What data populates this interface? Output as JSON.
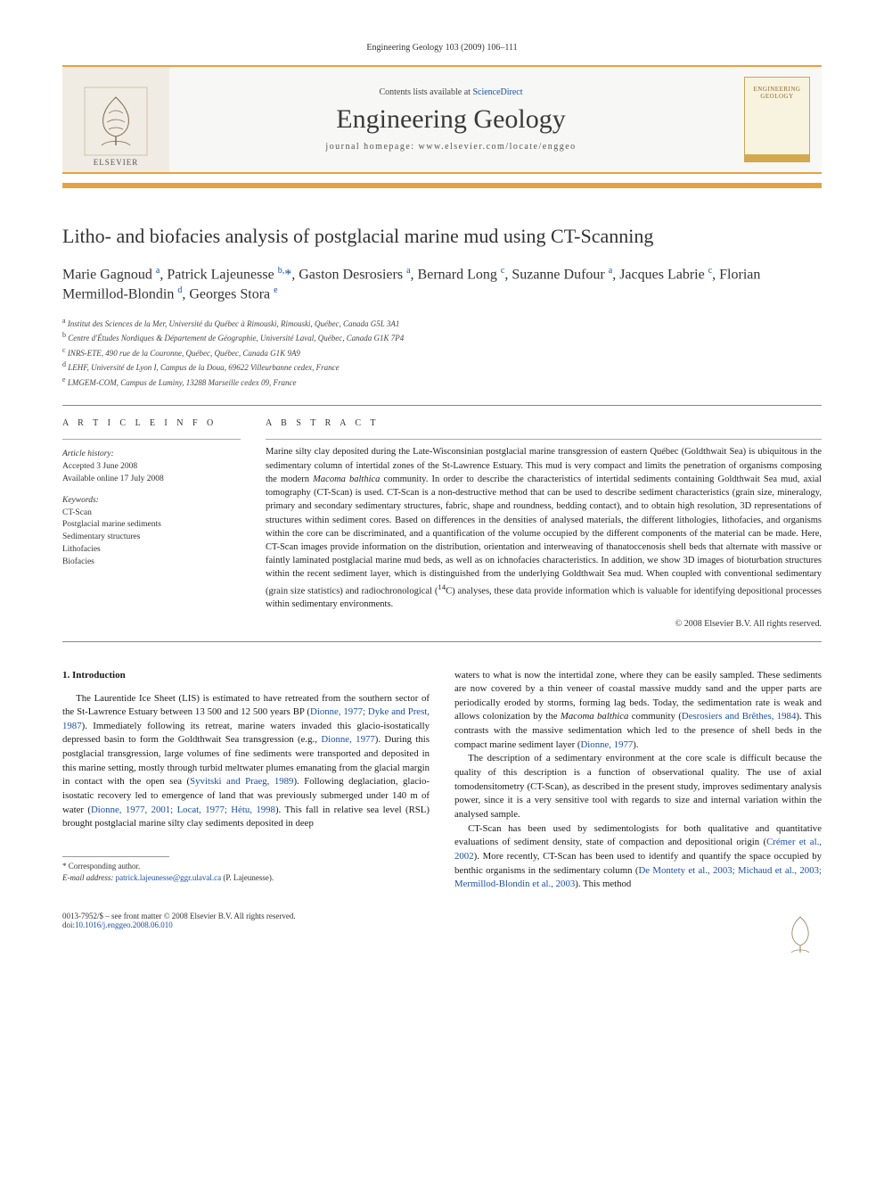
{
  "journal_header": "Engineering Geology 103 (2009) 106–111",
  "banner": {
    "contents_prefix": "Contents lists available at ",
    "contents_link": "ScienceDirect",
    "journal_title": "Engineering Geology",
    "homepage_prefix": "journal homepage: ",
    "homepage_url": "www.elsevier.com/locate/enggeo",
    "elsevier_wordmark": "ELSEVIER",
    "cover_label_1": "ENGINEERING",
    "cover_label_2": "GEOLOGY"
  },
  "article": {
    "title": "Litho- and biofacies analysis of postglacial marine mud using CT-Scanning",
    "authors_html": "Marie Gagnoud <sup>a</sup>, Patrick Lajeunesse <sup>b,</sup><span class='ast'>*</span>, Gaston Desrosiers <sup>a</sup>, Bernard Long <sup>c</sup>, Suzanne Dufour <sup>a</sup>, Jacques Labrie <sup>c</sup>, Florian Mermillod-Blondin <sup>d</sup>, Georges Stora <sup>e</sup>",
    "affiliations": [
      "a Institut des Sciences de la Mer, Université du Québec à Rimouski, Rimouski, Québec, Canada G5L 3A1",
      "b Centre d'Études Nordiques & Département de Géographie, Université Laval, Québec, Canada G1K 7P4",
      "c INRS-ETE, 490 rue de la Couronne, Québec, Québec, Canada G1K 9A9",
      "d LEHF, Université de Lyon I, Campus de la Doua, 69622 Villeurbanne cedex, France",
      "e LMGEM-COM, Campus de Luminy, 13288 Marseille cedex 09, France"
    ]
  },
  "info": {
    "section_label": "A R T I C L E   I N F O",
    "history_title": "Article history:",
    "history_1": "Accepted 3 June 2008",
    "history_2": "Available online 17 July 2008",
    "keywords_title": "Keywords:",
    "keywords": [
      "CT-Scan",
      "Postglacial marine sediments",
      "Sedimentary structures",
      "Lithofacies",
      "Biofacies"
    ]
  },
  "abstract": {
    "section_label": "A B S T R A C T",
    "text_html": "Marine silty clay deposited during the Late-Wisconsinian postglacial marine transgression of eastern Québec (Goldthwait Sea) is ubiquitous in the sedimentary column of intertidal zones of the St-Lawrence Estuary. This mud is very compact and limits the penetration of organisms composing the modern <span class='ital'>Macoma balthica</span> community. In order to describe the characteristics of intertidal sediments containing Goldthwait Sea mud, axial tomography (CT-Scan) is used. CT-Scan is a non-destructive method that can be used to describe sediment characteristics (grain size, mineralogy, primary and secondary sedimentary structures, fabric, shape and roundness, bedding contact), and to obtain high resolution, 3D representations of structures within sediment cores. Based on differences in the densities of analysed materials, the different lithologies, lithofacies, and organisms within the core can be discriminated, and a quantification of the volume occupied by the different components of the material can be made. Here, CT-Scan images provide information on the distribution, orientation and interweaving of thanatoccenosis shell beds that alternate with massive or faintly laminated postglacial marine mud beds, as well as on ichnofacies characteristics. In addition, we show 3D images of bioturbation structures within the recent sediment layer, which is distinguished from the underlying Goldthwait Sea mud. When coupled with conventional sedimentary (grain size statistics) and radiochronological (<sup>14</sup>C) analyses, these data provide information which is valuable for identifying depositional processes within sedimentary environments.",
    "copyright": "© 2008 Elsevier B.V. All rights reserved."
  },
  "body": {
    "heading": "1. Introduction",
    "left_paragraphs": [
      "The Laurentide Ice Sheet (LIS) is estimated to have retreated from the southern sector of the St-Lawrence Estuary between 13 500 and 12 500 years BP (<a href='#'>Dionne, 1977; Dyke and Prest, 1987</a>). Immediately following its retreat, marine waters invaded this glacio-isostatically depressed basin to form the Goldthwait Sea transgression (e.g., <a href='#'>Dionne, 1977</a>). During this postglacial transgression, large volumes of fine sediments were transported and deposited in this marine setting, mostly through turbid meltwater plumes emanating from the glacial margin in contact with the open sea (<a href='#'>Syvitski and Praeg, 1989</a>). Following deglaciation, glacio-isostatic recovery led to emergence of land that was previously submerged under 140 m of water (<a href='#'>Dionne, 1977, 2001; Locat, 1977; Hétu, 1998</a>). This fall in relative sea level (RSL) brought postglacial marine silty clay sediments deposited in deep"
    ],
    "right_paragraphs": [
      "waters to what is now the intertidal zone, where they can be easily sampled. These sediments are now covered by a thin veneer of coastal massive muddy sand and the upper parts are periodically eroded by storms, forming lag beds. Today, the sedimentation rate is weak and allows colonization by the <span style='font-style:italic'>Macoma balthica</span> community (<a href='#'>Desrosiers and Brêthes, 1984</a>). This contrasts with the massive sedimentation which led to the presence of shell beds in the compact marine sediment layer (<a href='#'>Dionne, 1977</a>).",
      "The description of a sedimentary environment at the core scale is difficult because the quality of this description is a function of observational quality. The use of axial tomodensitometry (CT-Scan), as described in the present study, improves sedimentary analysis power, since it is a very sensitive tool with regards to size and internal variation within the analysed sample.",
      "CT-Scan has been used by sedimentologists for both qualitative and quantitative evaluations of sediment density, state of compaction and depositional origin (<a href='#'>Crémer et al., 2002</a>). More recently, CT-Scan has been used to identify and quantify the space occupied by benthic organisms in the sedimentary column (<a href='#'>De Montety et al., 2003; Michaud et al., 2003; Mermillod-Blondin et al., 2003</a>). This method"
    ]
  },
  "footnotes": {
    "corresponding": "* Corresponding author.",
    "email_label": "E-mail address: ",
    "email": "patrick.lajeunesse@ggr.ulaval.ca",
    "email_suffix": " (P. Lajeunesse)."
  },
  "footer": {
    "left_line1": "0013-7952/$ – see front matter © 2008 Elsevier B.V. All rights reserved.",
    "left_line2_prefix": "doi:",
    "doi": "10.1016/j.enggeo.2008.06.010"
  },
  "colors": {
    "accent": "#e8a23d",
    "link": "#1a4fa3",
    "text": "#1a1a1a"
  }
}
